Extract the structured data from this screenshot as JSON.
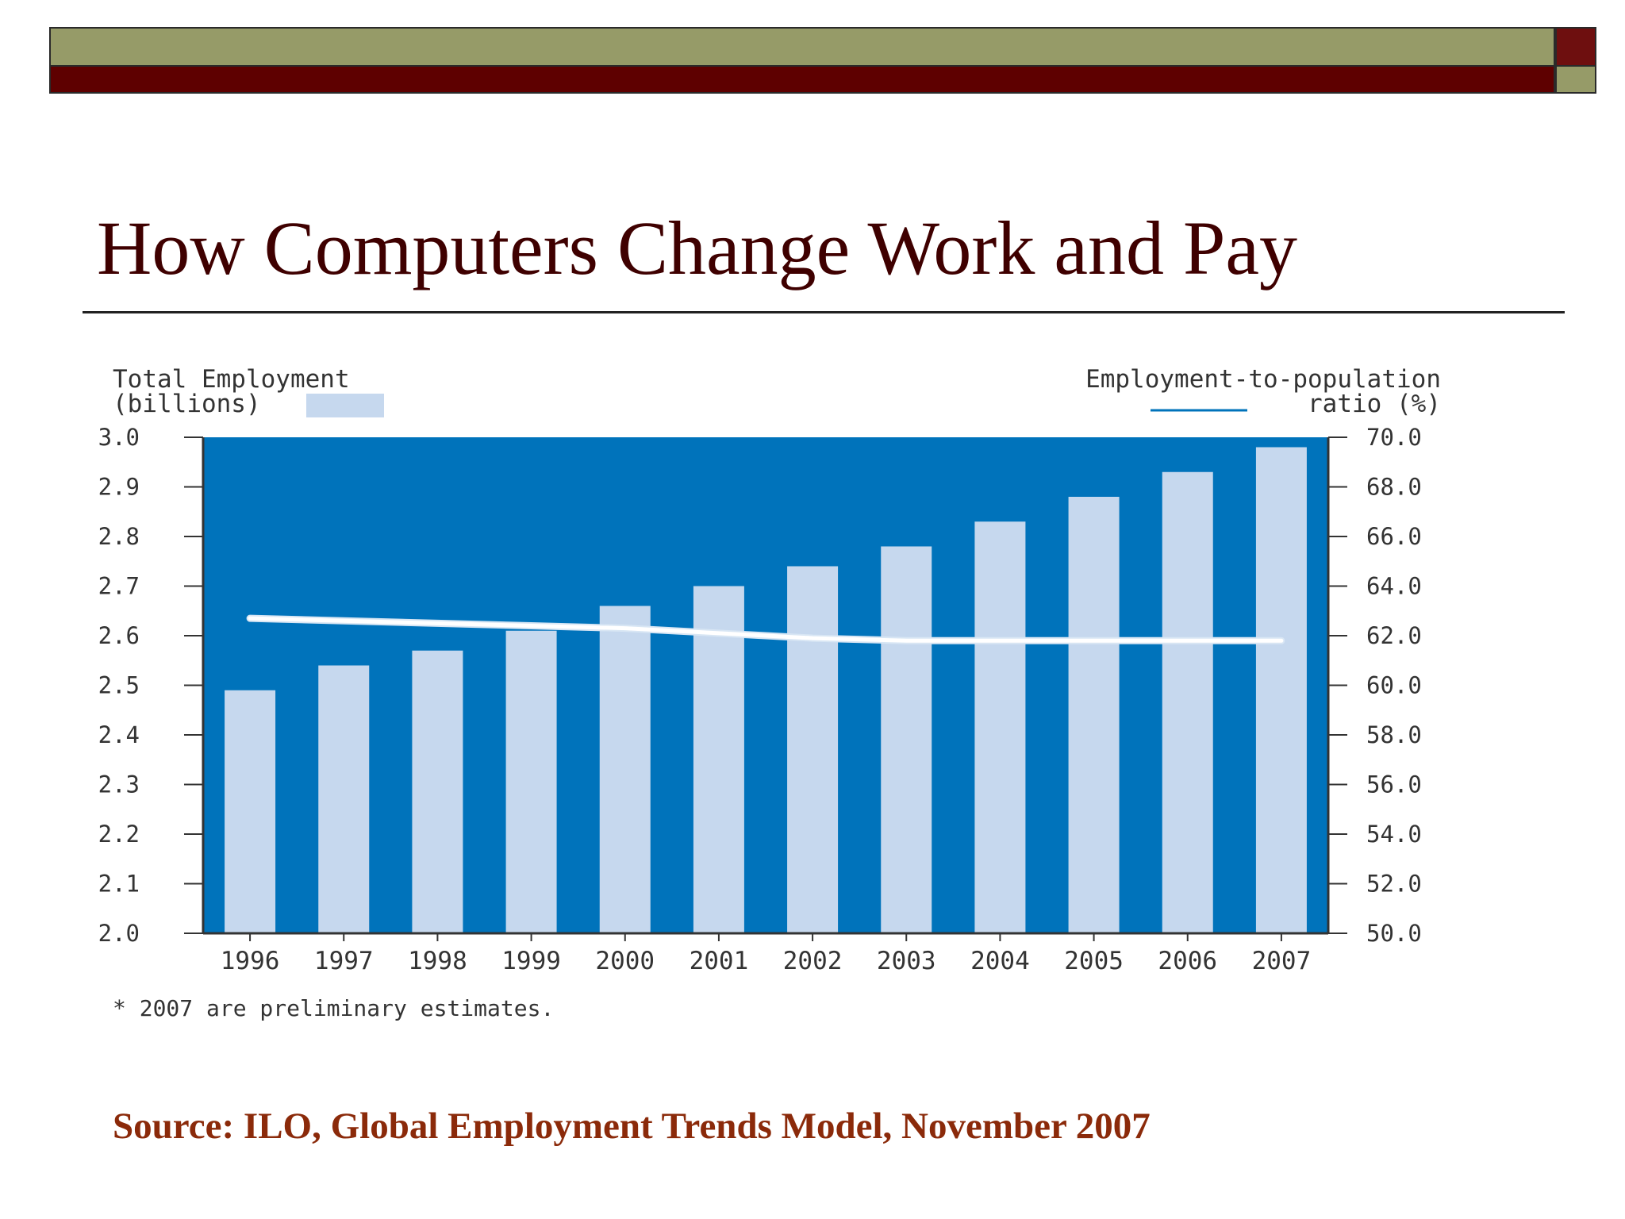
{
  "slide": {
    "title": "How Computers Change Work and Pay",
    "source": "Source: ILO, Global Employment Trends Model, November 2007"
  },
  "theme": {
    "olive": "#969b68",
    "dark_red": "#5e0000",
    "plot_background": "#0073bb",
    "bar_color": "#c6d8ee",
    "line_color": "#ffffff",
    "title_color": "#3f0000",
    "source_color": "#8b2a0a"
  },
  "chart_data": {
    "type": "bar",
    "left_axis_label_line1": "Total Employment",
    "left_axis_label_line2": "(billions)",
    "right_axis_label_line1": "Employment-to-population",
    "right_axis_label_line2": "ratio (%)",
    "footnote": "* 2007 are preliminary estimates.",
    "categories": [
      "1996",
      "1997",
      "1998",
      "1999",
      "2000",
      "2001",
      "2002",
      "2003",
      "2004",
      "2005",
      "2006",
      "2007"
    ],
    "ylim_left": [
      2.0,
      3.0
    ],
    "yticks_left": [
      "3.0",
      "2.9",
      "2.8",
      "2.7",
      "2.6",
      "2.5",
      "2.4",
      "2.3",
      "2.2",
      "2.1",
      "2.0"
    ],
    "ylim_right": [
      50.0,
      70.0
    ],
    "yticks_right": [
      "70.0",
      "68.0",
      "66.0",
      "64.0",
      "62.0",
      "60.0",
      "58.0",
      "56.0",
      "54.0",
      "52.0",
      "50.0"
    ],
    "grid": false,
    "series": [
      {
        "type": "bar",
        "axis": "left",
        "values": [
          2.49,
          2.54,
          2.57,
          2.61,
          2.66,
          2.7,
          2.74,
          2.78,
          2.83,
          2.88,
          2.93,
          2.98
        ]
      },
      {
        "type": "line",
        "axis": "right",
        "values": [
          62.7,
          62.6,
          62.5,
          62.4,
          62.3,
          62.1,
          61.9,
          61.8,
          61.8,
          61.8,
          61.8,
          61.8
        ]
      }
    ]
  }
}
